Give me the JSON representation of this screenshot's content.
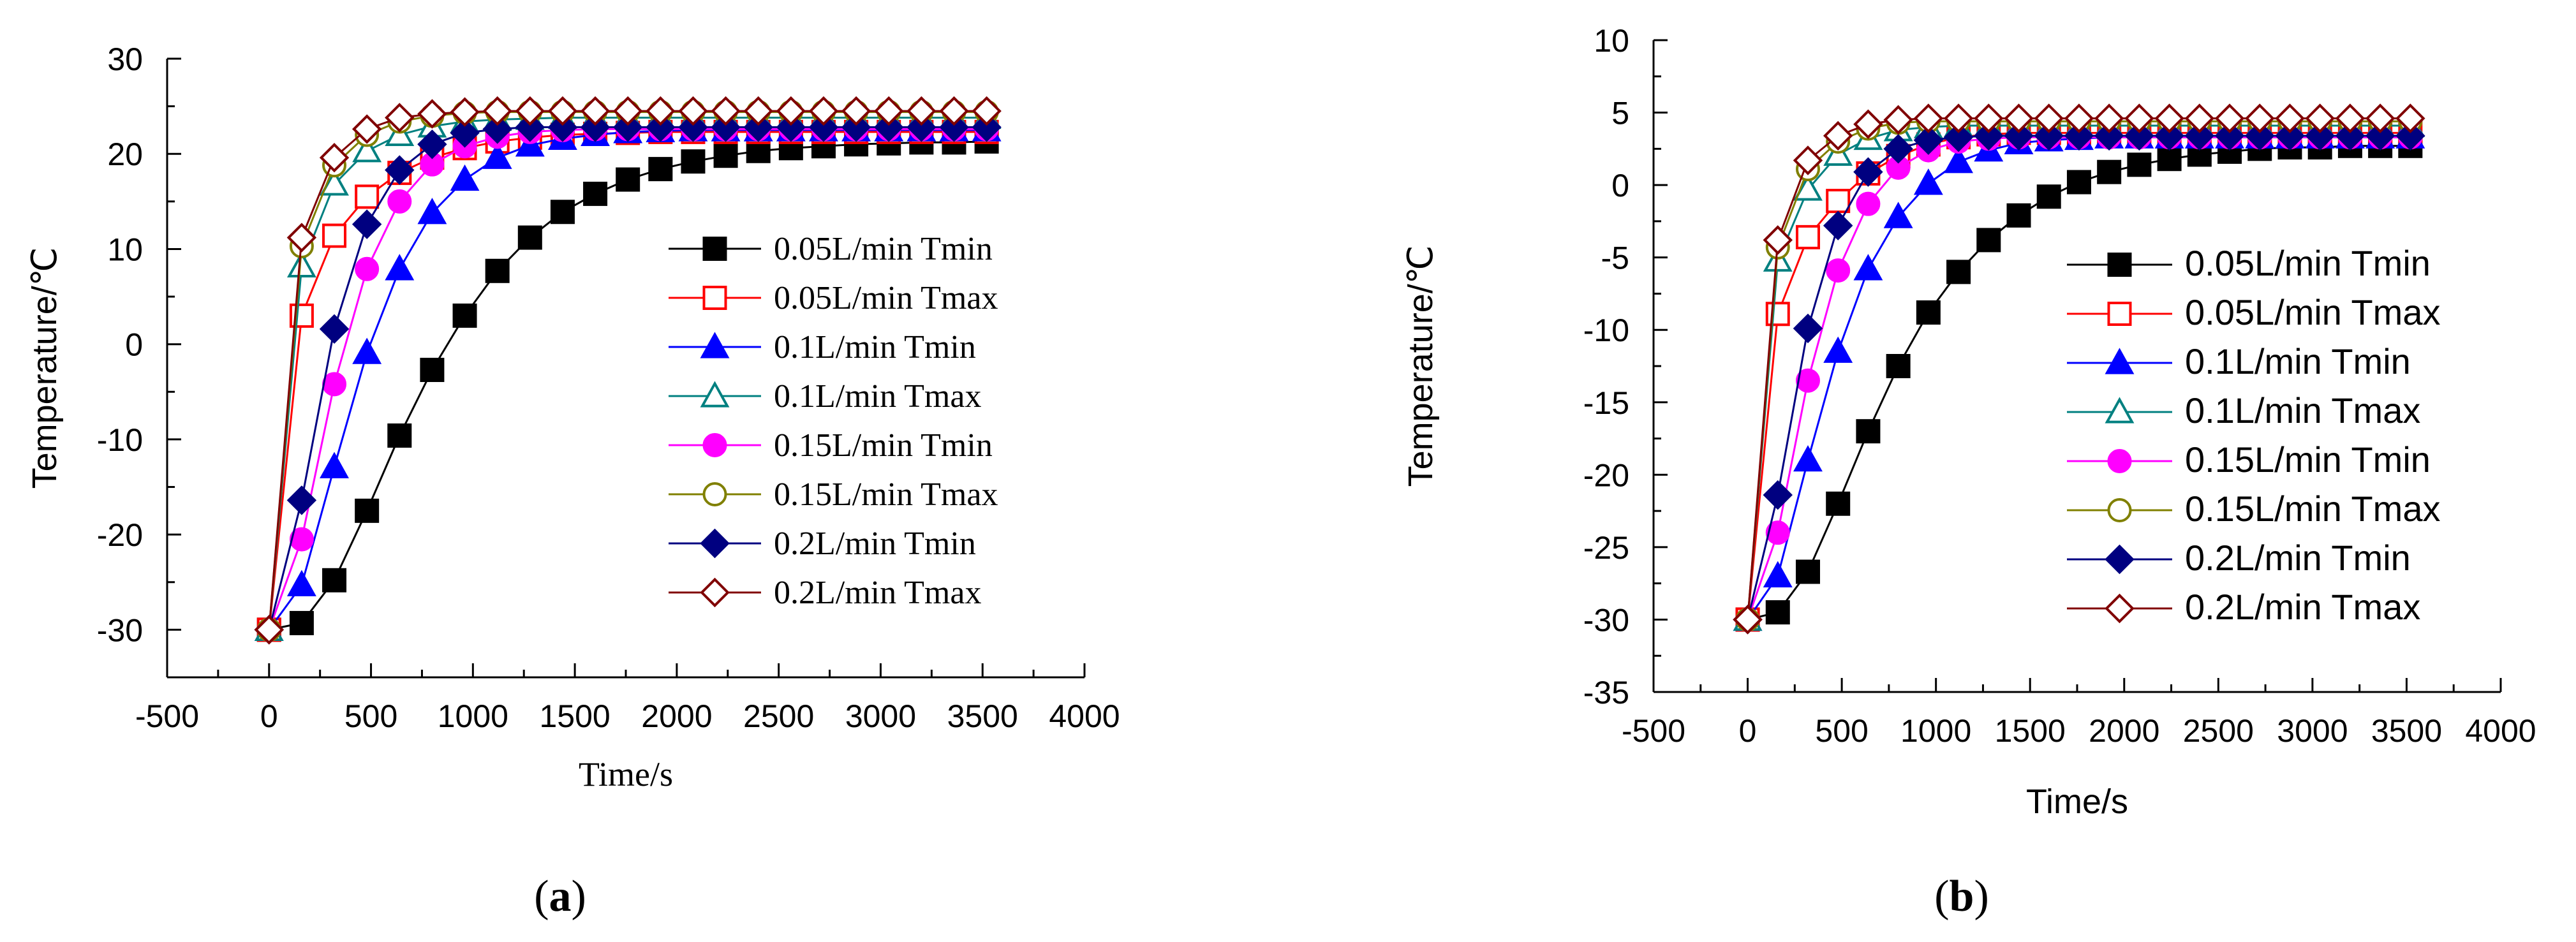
{
  "colors": {
    "black": "#000000",
    "red": "#ff0000",
    "blue": "#0000ff",
    "teal": "#008080",
    "magenta": "#ff00ff",
    "olive": "#808000",
    "navy": "#000080",
    "darkred": "#800000"
  },
  "chart_data": [
    {
      "type": "line",
      "panel_label": "a",
      "xlabel": "Time/s",
      "ylabel": "Temperature/℃",
      "xlim": [
        -500,
        4000
      ],
      "ylim": [
        -35,
        30
      ],
      "xticks": [
        -500,
        0,
        500,
        1000,
        1500,
        2000,
        2500,
        3000,
        3500,
        4000
      ],
      "yticks": [
        -30,
        -20,
        -10,
        0,
        10,
        20,
        30
      ],
      "grid": false,
      "legend_position": "center-right",
      "series": [
        {
          "name": "0.05L/min Tmin",
          "color": "#000000",
          "marker": "square-filled",
          "x": [
            0,
            160,
            320,
            480,
            640,
            800,
            960,
            1120,
            1280,
            1440,
            1600,
            1760,
            1920,
            2080,
            2240,
            2400,
            2560,
            2720,
            2880,
            3040,
            3200,
            3360,
            3520
          ],
          "y": [
            -30,
            -29.3,
            -24.8,
            -17.5,
            -9.6,
            -2.7,
            3,
            7.7,
            11.2,
            13.9,
            15.8,
            17.3,
            18.4,
            19.2,
            19.8,
            20.3,
            20.6,
            20.8,
            21,
            21.1,
            21.2,
            21.2,
            21.3
          ]
        },
        {
          "name": "0.05L/min Tmax",
          "color": "#ff0000",
          "marker": "square-open",
          "x": [
            0,
            160,
            320,
            480,
            640,
            800,
            960,
            1120,
            1280,
            1440,
            1600,
            1760,
            1920,
            2080,
            2240,
            2400,
            2560,
            2720,
            2880,
            3040,
            3200,
            3360,
            3520
          ],
          "y": [
            -30,
            3,
            11.4,
            15.5,
            18,
            19.6,
            20.6,
            21.3,
            21.7,
            22,
            22.1,
            22.2,
            22.3,
            22.3,
            22.3,
            22.3,
            22.3,
            22.3,
            22.3,
            22.3,
            22.3,
            22.3,
            22.3
          ]
        },
        {
          "name": "0.1L/min Tmin",
          "color": "#0000ff",
          "marker": "triangle-filled",
          "x": [
            0,
            160,
            320,
            480,
            640,
            800,
            960,
            1120,
            1280,
            1440,
            1600,
            1760,
            1920,
            2080,
            2240,
            2400,
            2560,
            2720,
            2880,
            3040,
            3200,
            3360,
            3520
          ],
          "y": [
            -30,
            -25.3,
            -12.9,
            -0.9,
            7.9,
            13.8,
            17.3,
            19.6,
            20.9,
            21.6,
            22,
            22.3,
            22.4,
            22.5,
            22.5,
            22.5,
            22.5,
            22.5,
            22.5,
            22.5,
            22.5,
            22.5,
            22.5
          ]
        },
        {
          "name": "0.1L/min Tmax",
          "color": "#008080",
          "marker": "triangle-open",
          "x": [
            0,
            160,
            320,
            480,
            640,
            800,
            960,
            1120,
            1280,
            1440,
            1600,
            1760,
            1920,
            2080,
            2240,
            2400,
            2560,
            2720,
            2880,
            3040,
            3200,
            3360,
            3520
          ],
          "y": [
            -30,
            8.2,
            16.8,
            20.3,
            22,
            22.9,
            23.4,
            23.6,
            23.7,
            23.8,
            23.8,
            23.8,
            23.8,
            23.8,
            23.8,
            23.8,
            23.8,
            23.8,
            23.8,
            23.8,
            23.8,
            23.8,
            23.8
          ]
        },
        {
          "name": "0.15L/min Tmin",
          "color": "#ff00ff",
          "marker": "circle-filled",
          "x": [
            0,
            160,
            320,
            480,
            640,
            800,
            960,
            1120,
            1280,
            1440,
            1600,
            1760,
            1920,
            2080,
            2240,
            2400,
            2560,
            2720,
            2880,
            3040,
            3200,
            3360,
            3520
          ],
          "y": [
            -30,
            -20.5,
            -4.2,
            7.9,
            15,
            18.9,
            20.8,
            21.8,
            22.3,
            22.5,
            22.6,
            22.6,
            22.6,
            22.6,
            22.6,
            22.6,
            22.6,
            22.6,
            22.6,
            22.6,
            22.6,
            22.6,
            22.6
          ]
        },
        {
          "name": "0.15L/min Tmax",
          "color": "#808000",
          "marker": "circle-open",
          "x": [
            0,
            160,
            320,
            480,
            640,
            800,
            960,
            1120,
            1280,
            1440,
            1600,
            1760,
            1920,
            2080,
            2240,
            2400,
            2560,
            2720,
            2880,
            3040,
            3200,
            3360,
            3520
          ],
          "y": [
            -30,
            10.3,
            18.8,
            22,
            23.4,
            24,
            24.3,
            24.4,
            24.4,
            24.4,
            24.4,
            24.4,
            24.4,
            24.4,
            24.4,
            24.4,
            24.4,
            24.4,
            24.4,
            24.4,
            24.4,
            24.4,
            24.4
          ]
        },
        {
          "name": "0.2L/min Tmin",
          "color": "#000080",
          "marker": "diamond-filled",
          "x": [
            0,
            160,
            320,
            480,
            640,
            800,
            960,
            1120,
            1280,
            1440,
            1600,
            1760,
            1920,
            2080,
            2240,
            2400,
            2560,
            2720,
            2880,
            3040,
            3200,
            3360,
            3520
          ],
          "y": [
            -30,
            -16.4,
            1.6,
            12.6,
            18.3,
            21,
            22.2,
            22.6,
            22.8,
            22.8,
            22.8,
            22.8,
            22.8,
            22.8,
            22.8,
            22.8,
            22.8,
            22.8,
            22.8,
            22.8,
            22.8,
            22.8,
            22.8
          ]
        },
        {
          "name": "0.2L/min Tmax",
          "color": "#800000",
          "marker": "diamond-open",
          "x": [
            0,
            160,
            320,
            480,
            640,
            800,
            960,
            1120,
            1280,
            1440,
            1600,
            1760,
            1920,
            2080,
            2240,
            2400,
            2560,
            2720,
            2880,
            3040,
            3200,
            3360,
            3520
          ],
          "y": [
            -30,
            11.2,
            19.6,
            22.6,
            23.8,
            24.2,
            24.4,
            24.5,
            24.5,
            24.5,
            24.5,
            24.5,
            24.5,
            24.5,
            24.5,
            24.5,
            24.5,
            24.5,
            24.5,
            24.5,
            24.5,
            24.5,
            24.5
          ]
        }
      ]
    },
    {
      "type": "line",
      "panel_label": "b",
      "xlabel": "Time/s",
      "ylabel": "Temperature/℃",
      "xlim": [
        -500,
        4000
      ],
      "ylim": [
        -35,
        10
      ],
      "xticks": [
        -500,
        0,
        500,
        1000,
        1500,
        2000,
        2500,
        3000,
        3500,
        4000
      ],
      "yticks": [
        -35,
        -30,
        -25,
        -20,
        -15,
        -10,
        -5,
        0,
        5,
        10
      ],
      "grid": false,
      "legend_position": "center-right",
      "series": [
        {
          "name": "0.05L/min Tmin",
          "color": "#000000",
          "marker": "square-filled",
          "x": [
            0,
            160,
            320,
            480,
            640,
            800,
            960,
            1120,
            1280,
            1440,
            1600,
            1760,
            1920,
            2080,
            2240,
            2400,
            2560,
            2720,
            2880,
            3040,
            3200,
            3360,
            3520
          ],
          "y": [
            -30,
            -29.5,
            -26.7,
            -22,
            -17,
            -12.5,
            -8.8,
            -6,
            -3.8,
            -2.1,
            -0.8,
            0.2,
            0.9,
            1.4,
            1.8,
            2.1,
            2.3,
            2.5,
            2.6,
            2.6,
            2.7,
            2.7,
            2.7
          ]
        },
        {
          "name": "0.05L/min Tmax",
          "color": "#ff0000",
          "marker": "square-open",
          "x": [
            0,
            160,
            320,
            480,
            640,
            800,
            960,
            1120,
            1280,
            1440,
            1600,
            1760,
            1920,
            2080,
            2240,
            2400,
            2560,
            2720,
            2880,
            3040,
            3200,
            3360,
            3520
          ],
          "y": [
            -30,
            -8.9,
            -3.6,
            -1.1,
            0.8,
            2,
            2.8,
            3.3,
            3.5,
            3.6,
            3.6,
            3.6,
            3.6,
            3.6,
            3.6,
            3.6,
            3.6,
            3.6,
            3.6,
            3.6,
            3.6,
            3.6,
            3.6
          ]
        },
        {
          "name": "0.1L/min Tmin",
          "color": "#0000ff",
          "marker": "triangle-filled",
          "x": [
            0,
            160,
            320,
            480,
            640,
            800,
            960,
            1120,
            1280,
            1440,
            1600,
            1760,
            1920,
            2080,
            2240,
            2400,
            2560,
            2720,
            2880,
            3040,
            3200,
            3360,
            3520
          ],
          "y": [
            -30,
            -27,
            -19,
            -11.5,
            -5.8,
            -2.2,
            0.1,
            1.6,
            2.4,
            2.9,
            3.1,
            3.2,
            3.3,
            3.3,
            3.3,
            3.3,
            3.3,
            3.3,
            3.3,
            3.3,
            3.3,
            3.3,
            3.3
          ]
        },
        {
          "name": "0.1L/min Tmax",
          "color": "#008080",
          "marker": "triangle-open",
          "x": [
            0,
            160,
            320,
            480,
            640,
            800,
            960,
            1120,
            1280,
            1440,
            1600,
            1760,
            1920,
            2080,
            2240,
            2400,
            2560,
            2720,
            2880,
            3040,
            3200,
            3360,
            3520
          ],
          "y": [
            -30,
            -5.2,
            -0.3,
            2.1,
            3.2,
            3.8,
            4,
            4.1,
            4.1,
            4.1,
            4.1,
            4.1,
            4.1,
            4.1,
            4.1,
            4.1,
            4.1,
            4.1,
            4.1,
            4.1,
            4.1,
            4.1,
            4.1
          ]
        },
        {
          "name": "0.15L/min Tmin",
          "color": "#ff00ff",
          "marker": "circle-filled",
          "x": [
            0,
            160,
            320,
            480,
            640,
            800,
            960,
            1120,
            1280,
            1440,
            1600,
            1760,
            1920,
            2080,
            2240,
            2400,
            2560,
            2720,
            2880,
            3040,
            3200,
            3360,
            3520
          ],
          "y": [
            -30,
            -24,
            -13.5,
            -5.9,
            -1.3,
            1.2,
            2.4,
            3,
            3.2,
            3.3,
            3.3,
            3.3,
            3.3,
            3.3,
            3.3,
            3.3,
            3.3,
            3.3,
            3.3,
            3.3,
            3.3,
            3.3,
            3.3
          ]
        },
        {
          "name": "0.15L/min Tmax",
          "color": "#808000",
          "marker": "circle-open",
          "x": [
            0,
            160,
            320,
            480,
            640,
            800,
            960,
            1120,
            1280,
            1440,
            1600,
            1760,
            1920,
            2080,
            2240,
            2400,
            2560,
            2720,
            2880,
            3040,
            3200,
            3360,
            3520
          ],
          "y": [
            -30,
            -4.3,
            1.1,
            3,
            3.9,
            4.3,
            4.4,
            4.4,
            4.4,
            4.4,
            4.4,
            4.4,
            4.4,
            4.4,
            4.4,
            4.4,
            4.4,
            4.4,
            4.4,
            4.4,
            4.4,
            4.4,
            4.4
          ]
        },
        {
          "name": "0.2L/min Tmin",
          "color": "#000080",
          "marker": "diamond-filled",
          "x": [
            0,
            160,
            320,
            480,
            640,
            800,
            960,
            1120,
            1280,
            1440,
            1600,
            1760,
            1920,
            2080,
            2240,
            2400,
            2560,
            2720,
            2880,
            3040,
            3200,
            3360,
            3520
          ],
          "y": [
            -30,
            -21.4,
            -9.9,
            -2.8,
            0.9,
            2.5,
            3.1,
            3.3,
            3.4,
            3.4,
            3.4,
            3.4,
            3.4,
            3.4,
            3.4,
            3.4,
            3.4,
            3.4,
            3.4,
            3.4,
            3.4,
            3.4,
            3.4
          ]
        },
        {
          "name": "0.2L/min Tmax",
          "color": "#800000",
          "marker": "diamond-open",
          "x": [
            0,
            160,
            320,
            480,
            640,
            800,
            960,
            1120,
            1280,
            1440,
            1600,
            1760,
            1920,
            2080,
            2240,
            2400,
            2560,
            2720,
            2880,
            3040,
            3200,
            3360,
            3520
          ],
          "y": [
            -30,
            -3.8,
            1.7,
            3.4,
            4.2,
            4.5,
            4.6,
            4.6,
            4.6,
            4.6,
            4.6,
            4.6,
            4.6,
            4.6,
            4.6,
            4.6,
            4.6,
            4.6,
            4.6,
            4.6,
            4.6,
            4.6,
            4.6
          ]
        }
      ]
    }
  ]
}
